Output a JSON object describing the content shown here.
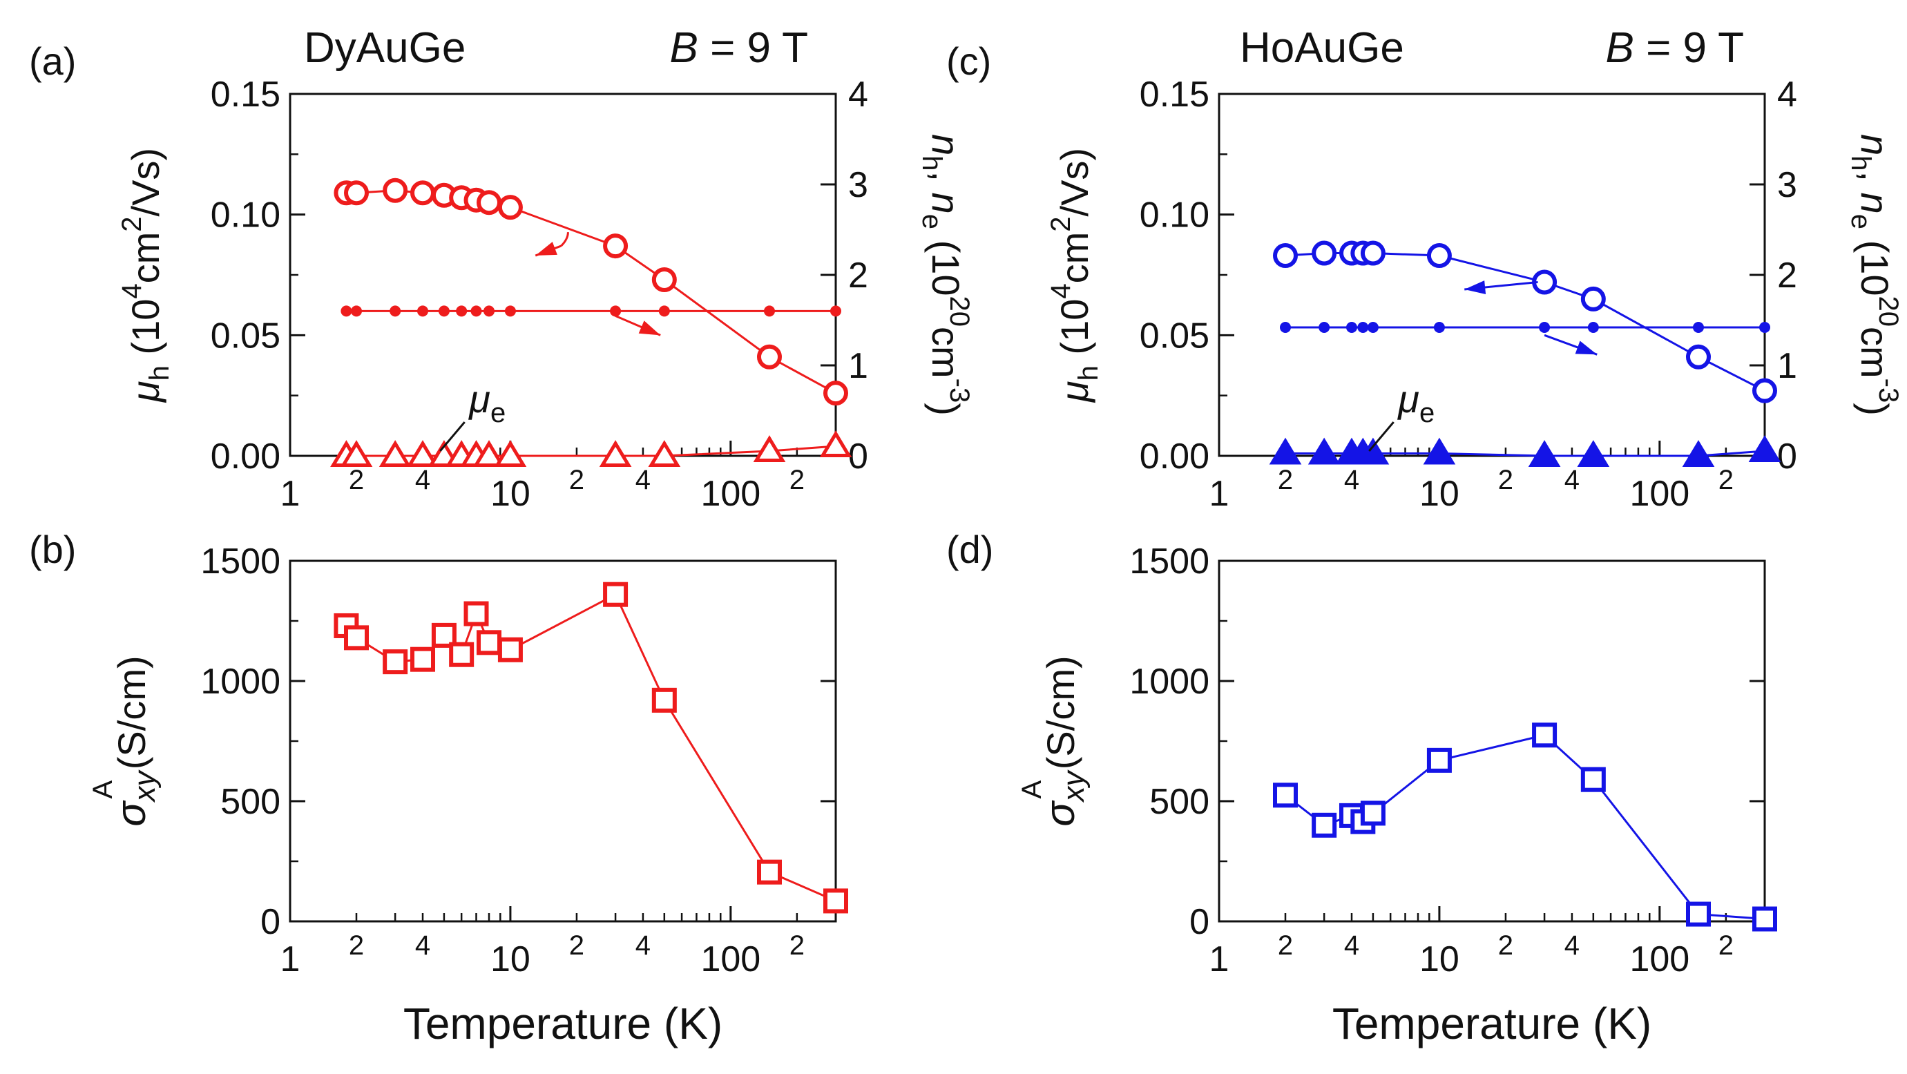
{
  "figure": {
    "xlabel": "Temperature (K)",
    "x_major_ticks": [
      "1",
      "10",
      "100"
    ],
    "x_minor_ticks": [
      "2",
      "4",
      "2",
      "4",
      "2"
    ],
    "mu_e_label": "μ",
    "mu_e_sub": "e",
    "top_ylabel_left": {
      "sym": "μ",
      "sub": "h",
      "open": " (10",
      "sup1": "4",
      "mid": "cm",
      "sup2": "2",
      "close": "/Vs)"
    },
    "top_ylabel_right": {
      "sym1": "n",
      "sub1": "h",
      "comma": ", ",
      "sym2": "n",
      "sub2": "e",
      "open": " (10",
      "sup1": "20",
      "mid": "cm",
      "sup2": "-3",
      "close": ")"
    },
    "bottom_ylabel": {
      "sym": "σ",
      "sub": "xy",
      "sup": "A",
      "units": " (S/cm)"
    },
    "field_prefix": "B",
    "field_suffix": " = 9 T",
    "top_left_ticks": [
      "0.00",
      "0.05",
      "0.10",
      "0.15"
    ],
    "top_right_ticks": [
      "0",
      "1",
      "2",
      "3",
      "4"
    ],
    "bottom_ticks": [
      "0",
      "500",
      "1000",
      "1500"
    ]
  },
  "chart_data": [
    {
      "type": "scatter",
      "panel": "(a)",
      "title": "DyAuGe",
      "color": "#ee1c1c",
      "xscale": "log",
      "xlim": [
        1,
        300
      ],
      "ylim_left": [
        0,
        0.15
      ],
      "ylim_right": [
        0,
        4
      ],
      "series": [
        {
          "name": "μh",
          "axis": "left",
          "marker": "open-circle",
          "x": [
            1.8,
            2.0,
            3.0,
            4.0,
            5.0,
            6.0,
            7.0,
            8.0,
            10.0,
            30.0,
            50.0,
            150.0,
            300.0
          ],
          "y": [
            0.109,
            0.109,
            0.11,
            0.109,
            0.108,
            0.107,
            0.106,
            0.105,
            0.103,
            0.087,
            0.073,
            0.041,
            0.026
          ]
        },
        {
          "name": "μe",
          "axis": "left",
          "marker": "open-triangle",
          "x": [
            1.8,
            2.0,
            3.0,
            4.0,
            5.0,
            6.0,
            7.0,
            8.0,
            10.0,
            30.0,
            50.0,
            150.0,
            300.0
          ],
          "y": [
            0.0,
            0.0,
            0.0,
            0.0,
            0.0,
            0.0,
            0.0,
            0.0,
            0.0,
            0.0,
            0.0,
            0.002,
            0.004
          ]
        },
        {
          "name": "nh = ne",
          "axis": "right",
          "marker": "filled-dot",
          "x": [
            1.8,
            2.0,
            3.0,
            4.0,
            5.0,
            6.0,
            7.0,
            8.0,
            10.0,
            30.0,
            50.0,
            150.0,
            300.0
          ],
          "y": [
            1.6,
            1.6,
            1.6,
            1.6,
            1.6,
            1.6,
            1.6,
            1.6,
            1.6,
            1.6,
            1.6,
            1.6,
            1.6
          ]
        }
      ]
    },
    {
      "type": "line",
      "panel": "(b)",
      "title": "",
      "color": "#ee1c1c",
      "xscale": "log",
      "xlim": [
        1,
        300
      ],
      "ylim": [
        0,
        1500
      ],
      "series": [
        {
          "name": "σxyA",
          "marker": "open-square",
          "x": [
            1.8,
            2.0,
            3.0,
            4.0,
            5.0,
            6.0,
            7.0,
            8.0,
            10.0,
            30.0,
            50.0,
            150.0,
            300.0
          ],
          "y": [
            1230,
            1180,
            1080,
            1090,
            1190,
            1110,
            1280,
            1160,
            1130,
            1360,
            920,
            205,
            85
          ]
        }
      ]
    },
    {
      "type": "scatter",
      "panel": "(c)",
      "title": "HoAuGe",
      "color": "#1414e6",
      "xscale": "log",
      "xlim": [
        1,
        300
      ],
      "ylim_left": [
        0,
        0.15
      ],
      "ylim_right": [
        0,
        4
      ],
      "series": [
        {
          "name": "μh",
          "axis": "left",
          "marker": "open-circle",
          "x": [
            2.0,
            3.0,
            4.0,
            4.5,
            5.0,
            10.0,
            30.0,
            50.0,
            150.0,
            300.0
          ],
          "y": [
            0.083,
            0.084,
            0.084,
            0.084,
            0.084,
            0.083,
            0.072,
            0.065,
            0.041,
            0.027
          ]
        },
        {
          "name": "μe",
          "axis": "left",
          "marker": "filled-triangle",
          "x": [
            2.0,
            3.0,
            4.0,
            4.5,
            5.0,
            10.0,
            30.0,
            50.0,
            150.0,
            300.0
          ],
          "y": [
            0.001,
            0.001,
            0.001,
            0.001,
            0.001,
            0.001,
            0.0,
            0.0,
            0.0,
            0.002
          ]
        },
        {
          "name": "nh = ne",
          "axis": "right",
          "marker": "filled-dot",
          "x": [
            2.0,
            3.0,
            4.0,
            4.5,
            5.0,
            10.0,
            30.0,
            50.0,
            150.0,
            300.0
          ],
          "y": [
            1.42,
            1.42,
            1.42,
            1.42,
            1.42,
            1.42,
            1.42,
            1.42,
            1.42,
            1.42
          ]
        }
      ]
    },
    {
      "type": "line",
      "panel": "(d)",
      "title": "",
      "color": "#1414e6",
      "xscale": "log",
      "xlim": [
        1,
        300
      ],
      "ylim": [
        0,
        1500
      ],
      "series": [
        {
          "name": "σxyA",
          "marker": "open-square",
          "x": [
            2.0,
            3.0,
            4.0,
            4.5,
            5.0,
            10.0,
            30.0,
            50.0,
            150.0,
            300.0
          ],
          "y": [
            525,
            400,
            440,
            415,
            450,
            670,
            775,
            590,
            30,
            10
          ]
        }
      ]
    }
  ]
}
